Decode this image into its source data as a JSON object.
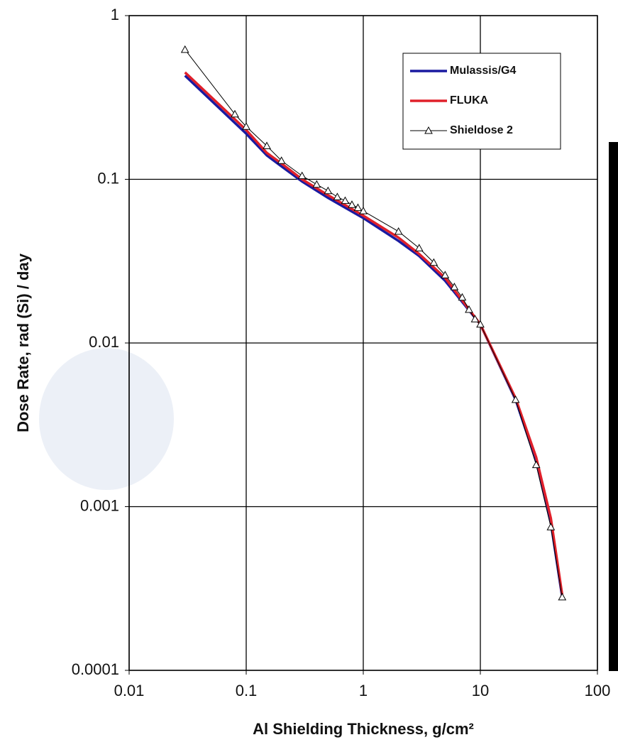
{
  "chart_data": {
    "type": "line",
    "x_label": "Al Shielding Thickness, g/cm²",
    "y_label": "Dose Rate, rad (Si) / day",
    "xlog": true,
    "ylog": true,
    "grid": true,
    "legend": "upper right",
    "xlim": [
      0.01,
      100
    ],
    "xticks": [
      0.01,
      0.1,
      1,
      10,
      100
    ],
    "ylim": [
      0.0001,
      1
    ],
    "yticks": [
      0.0001,
      0.001,
      0.01,
      0.1,
      1
    ],
    "series": [
      {
        "name": "Mulassis/G4",
        "color": "#1a1aa0",
        "x": [
          0.03,
          0.1,
          0.15,
          0.2,
          0.3,
          0.5,
          1,
          2,
          3,
          5,
          10,
          20,
          30,
          40,
          50
        ],
        "values": [
          0.43,
          0.19,
          0.14,
          0.12,
          0.097,
          0.077,
          0.058,
          0.042,
          0.034,
          0.024,
          0.013,
          0.0045,
          0.0019,
          0.0008,
          0.00028
        ]
      },
      {
        "name": "FLUKA",
        "color": "#e0202a",
        "x": [
          0.03,
          0.1,
          0.15,
          0.2,
          0.3,
          0.5,
          1,
          2,
          3,
          5,
          10,
          20,
          30,
          40,
          50
        ],
        "values": [
          0.45,
          0.2,
          0.145,
          0.125,
          0.1,
          0.08,
          0.06,
          0.044,
          0.035,
          0.025,
          0.013,
          0.0046,
          0.002,
          0.00085,
          0.00029
        ]
      },
      {
        "name": "Shieldose 2",
        "color": "#000000",
        "marker": "triangle",
        "x": [
          0.03,
          0.08,
          0.1,
          0.15,
          0.2,
          0.3,
          0.4,
          0.5,
          0.6,
          0.7,
          0.8,
          0.9,
          1,
          2,
          3,
          4,
          5,
          6,
          7,
          8,
          9,
          10,
          20,
          30,
          40,
          50
        ],
        "values": [
          0.62,
          0.25,
          0.21,
          0.16,
          0.13,
          0.105,
          0.093,
          0.085,
          0.078,
          0.074,
          0.07,
          0.067,
          0.064,
          0.048,
          0.038,
          0.031,
          0.026,
          0.022,
          0.019,
          0.016,
          0.014,
          0.013,
          0.0045,
          0.0018,
          0.00075,
          0.00028
        ]
      }
    ]
  }
}
